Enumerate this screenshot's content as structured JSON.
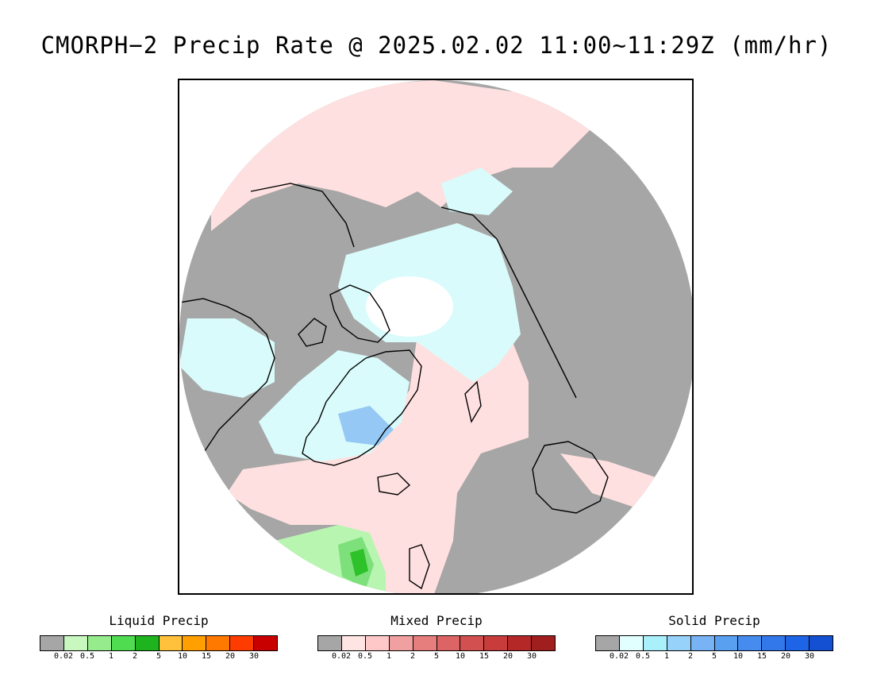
{
  "title": "CMORPH−2 Precip Rate @ 2025.02.02 11:00~11:29Z (mm/hr)",
  "map": {
    "projection": "north-polar-stereographic",
    "colors": {
      "no_precip": "#a6a6a6",
      "mixed_light": "#ffe0e0",
      "solid_light": "#d9fbfb",
      "solid_moderate": "#96c8f5",
      "solid_heavy": "#5aa0e8",
      "liquid_light": "#b7f5b0",
      "liquid_moderate": "#7ee07a",
      "liquid_heavy": "#2ec22a",
      "coastline": "#000000",
      "pole_gap": "#ffffff"
    }
  },
  "legends": [
    {
      "title": "Liquid Precip",
      "tick_labels": [
        "0.02",
        "0.5",
        "1",
        "2",
        "5",
        "10",
        "15",
        "20",
        "30"
      ],
      "colors": [
        "#a6a6a6",
        "#c8f7c0",
        "#96eb8c",
        "#50dc50",
        "#1eb41e",
        "#ffc03c",
        "#ffa000",
        "#ff7800",
        "#ff3c00",
        "#c80000"
      ]
    },
    {
      "title": "Mixed Precip",
      "tick_labels": [
        "0.02",
        "0.5",
        "1",
        "2",
        "5",
        "10",
        "15",
        "20",
        "30"
      ],
      "colors": [
        "#a6a6a6",
        "#ffe4e4",
        "#ffc8c8",
        "#f0a0a0",
        "#e67e7e",
        "#dc6464",
        "#d25050",
        "#c83c3c",
        "#b42828",
        "#a01e1e"
      ]
    },
    {
      "title": "Solid Precip",
      "tick_labels": [
        "0.02",
        "0.5",
        "1",
        "2",
        "5",
        "10",
        "15",
        "20",
        "30"
      ],
      "colors": [
        "#a6a6a6",
        "#e1ffff",
        "#aaf0fa",
        "#96d2fa",
        "#78b4f5",
        "#5aa0f0",
        "#468cee",
        "#3278eb",
        "#1e64e6",
        "#1450d2"
      ]
    }
  ]
}
